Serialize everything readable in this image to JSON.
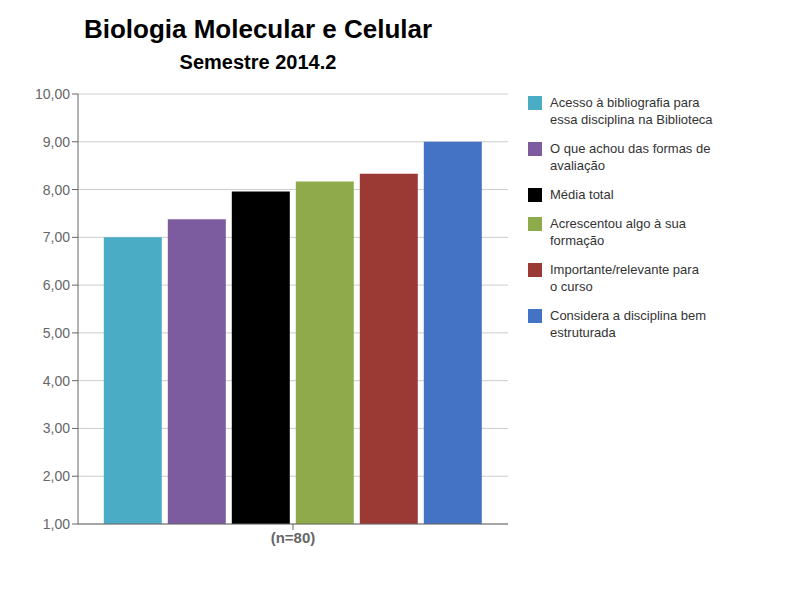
{
  "chart_data": {
    "type": "bar",
    "title": "Biologia Molecular e Celular",
    "subtitle": "Semestre 2014.2",
    "categories": [
      "(n=80)"
    ],
    "series": [
      {
        "name": "Acesso à bibliografia para\nessa disciplina na Biblioteca",
        "color": "#4bacc6",
        "values": [
          7.0
        ]
      },
      {
        "name": "O que achou das formas de\navaliação",
        "color": "#7c5c9e",
        "values": [
          7.38
        ]
      },
      {
        "name": "Média total",
        "color": "#000000",
        "values": [
          7.96
        ]
      },
      {
        "name": "Acrescentou algo à sua\nformação",
        "color": "#8faa4b",
        "values": [
          8.17
        ]
      },
      {
        "name": "Importante/relevante para\no curso",
        "color": "#9b3a35",
        "values": [
          8.33
        ]
      },
      {
        "name": "Considera a disciplina bem\nestruturada",
        "color": "#4472c4",
        "values": [
          9.0
        ]
      }
    ],
    "ylim": [
      1.0,
      10.0
    ],
    "yticks": [
      {
        "value": 1.0,
        "label": "1,00"
      },
      {
        "value": 2.0,
        "label": "2,00"
      },
      {
        "value": 3.0,
        "label": "3,00"
      },
      {
        "value": 4.0,
        "label": "4,00"
      },
      {
        "value": 5.0,
        "label": "5,00"
      },
      {
        "value": 6.0,
        "label": "6,00"
      },
      {
        "value": 7.0,
        "label": "7,00"
      },
      {
        "value": 8.0,
        "label": "8,00"
      },
      {
        "value": 9.0,
        "label": "9,00"
      },
      {
        "value": 10.0,
        "label": "10,00"
      }
    ],
    "grid": true,
    "legend": "right"
  }
}
